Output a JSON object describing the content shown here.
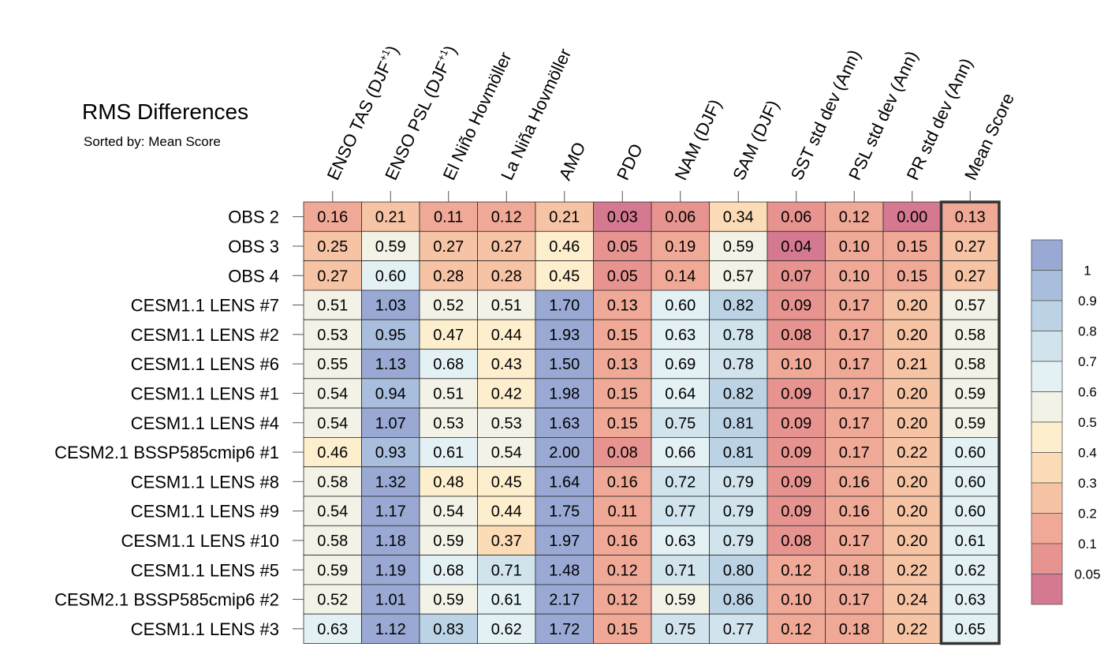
{
  "header": {
    "title": "RMS Differences",
    "subtitle": "Sorted by: Mean Score"
  },
  "chart_data": {
    "type": "heatmap",
    "title": "RMS Differences",
    "subtitle": "Sorted by: Mean Score",
    "columns": [
      "ENSO TAS (DJF+1)",
      "ENSO PSL (DJF+1)",
      "El Niño Hovmöller",
      "La Niña Hovmöller",
      "AMO",
      "PDO",
      "NAM (DJF)",
      "SAM (DJF)",
      "SST std dev (Ann)",
      "PSL std dev (Ann)",
      "PR std dev (Ann)",
      "Mean Score"
    ],
    "column_labels": [
      {
        "text": "ENSO TAS (DJF",
        "sup": "+1",
        "close": ")"
      },
      {
        "text": "ENSO PSL (DJF",
        "sup": "+1",
        "close": ")"
      },
      {
        "text": "El Niño Hovmöller"
      },
      {
        "text": "La Niña Hovmöller"
      },
      {
        "text": "AMO"
      },
      {
        "text": "PDO"
      },
      {
        "text": "NAM (DJF)"
      },
      {
        "text": "SAM (DJF)"
      },
      {
        "text": "SST std dev (Ann)"
      },
      {
        "text": "PSL std dev (Ann)"
      },
      {
        "text": "PR std dev (Ann)"
      },
      {
        "text": "Mean Score"
      }
    ],
    "rows": [
      "OBS 2",
      "OBS 3",
      "OBS 4",
      "CESM1.1 LENS #7",
      "CESM1.1 LENS #2",
      "CESM1.1 LENS #6",
      "CESM1.1 LENS #1",
      "CESM1.1 LENS #4",
      "CESM2.1 BSSP585cmip6 #1",
      "CESM1.1 LENS #8",
      "CESM1.1 LENS #9",
      "CESM1.1 LENS #10",
      "CESM1.1 LENS #5",
      "CESM2.1 BSSP585cmip6 #2",
      "CESM1.1 LENS #3"
    ],
    "values": [
      [
        "0.16",
        "0.21",
        "0.11",
        "0.12",
        "0.21",
        "0.03",
        "0.06",
        "0.34",
        "0.06",
        "0.12",
        "0.00",
        "0.13"
      ],
      [
        "0.25",
        "0.59",
        "0.27",
        "0.27",
        "0.46",
        "0.05",
        "0.19",
        "0.59",
        "0.04",
        "0.10",
        "0.15",
        "0.27"
      ],
      [
        "0.27",
        "0.60",
        "0.28",
        "0.28",
        "0.45",
        "0.05",
        "0.14",
        "0.57",
        "0.07",
        "0.10",
        "0.15",
        "0.27"
      ],
      [
        "0.51",
        "1.03",
        "0.52",
        "0.51",
        "1.70",
        "0.13",
        "0.60",
        "0.82",
        "0.09",
        "0.17",
        "0.20",
        "0.57"
      ],
      [
        "0.53",
        "0.95",
        "0.47",
        "0.44",
        "1.93",
        "0.15",
        "0.63",
        "0.78",
        "0.08",
        "0.17",
        "0.20",
        "0.58"
      ],
      [
        "0.55",
        "1.13",
        "0.68",
        "0.43",
        "1.50",
        "0.13",
        "0.69",
        "0.78",
        "0.10",
        "0.17",
        "0.21",
        "0.58"
      ],
      [
        "0.54",
        "0.94",
        "0.51",
        "0.42",
        "1.98",
        "0.15",
        "0.64",
        "0.82",
        "0.09",
        "0.17",
        "0.20",
        "0.59"
      ],
      [
        "0.54",
        "1.07",
        "0.53",
        "0.53",
        "1.63",
        "0.15",
        "0.75",
        "0.81",
        "0.09",
        "0.17",
        "0.20",
        "0.59"
      ],
      [
        "0.46",
        "0.93",
        "0.61",
        "0.54",
        "2.00",
        "0.08",
        "0.66",
        "0.81",
        "0.09",
        "0.17",
        "0.22",
        "0.60"
      ],
      [
        "0.58",
        "1.32",
        "0.48",
        "0.45",
        "1.64",
        "0.16",
        "0.72",
        "0.79",
        "0.09",
        "0.16",
        "0.20",
        "0.60"
      ],
      [
        "0.54",
        "1.17",
        "0.54",
        "0.44",
        "1.75",
        "0.11",
        "0.77",
        "0.79",
        "0.09",
        "0.16",
        "0.20",
        "0.60"
      ],
      [
        "0.58",
        "1.18",
        "0.59",
        "0.37",
        "1.97",
        "0.16",
        "0.63",
        "0.79",
        "0.08",
        "0.17",
        "0.20",
        "0.61"
      ],
      [
        "0.59",
        "1.19",
        "0.68",
        "0.71",
        "1.48",
        "0.12",
        "0.71",
        "0.80",
        "0.12",
        "0.18",
        "0.22",
        "0.62"
      ],
      [
        "0.52",
        "1.01",
        "0.59",
        "0.61",
        "2.17",
        "0.12",
        "0.59",
        "0.86",
        "0.10",
        "0.17",
        "0.24",
        "0.63"
      ],
      [
        "0.63",
        "1.12",
        "0.83",
        "0.62",
        "1.72",
        "0.15",
        "0.75",
        "0.77",
        "0.12",
        "0.18",
        "0.22",
        "0.65"
      ]
    ],
    "colorbar": {
      "levels": [
        "1",
        "0.9",
        "0.8",
        "0.7",
        "0.6",
        "0.5",
        "0.4",
        "0.3",
        "0.2",
        "0.1",
        "0.05"
      ],
      "level_values": [
        1,
        0.9,
        0.8,
        0.7,
        0.6,
        0.5,
        0.4,
        0.3,
        0.2,
        0.1,
        0.05
      ],
      "colors_top_to_bottom": [
        "#9aa9d4",
        "#a9bedd",
        "#bcd3e6",
        "#d1e4ee",
        "#e4f1f4",
        "#f3f2e7",
        "#fdefcd",
        "#fcdcb7",
        "#f6c3a4",
        "#f0a996",
        "#e79490",
        "#d47990"
      ]
    },
    "highlight_column": "Mean Score"
  }
}
